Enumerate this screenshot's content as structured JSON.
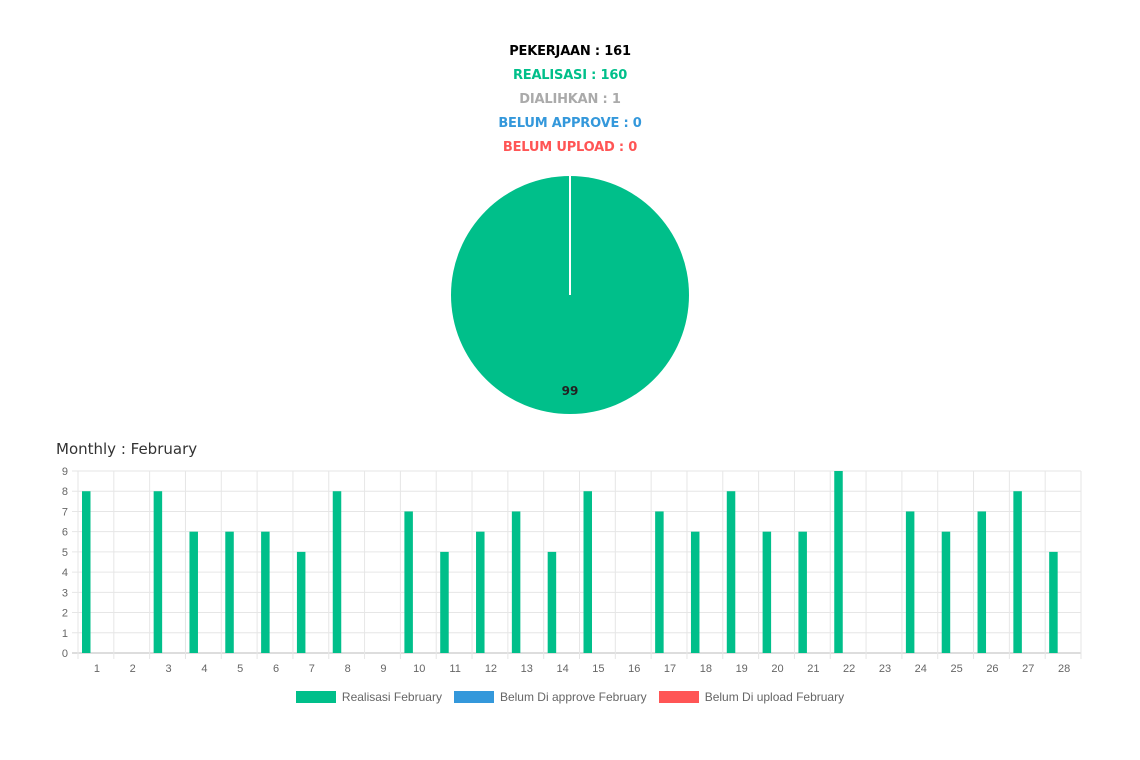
{
  "summary": {
    "pekerjaan": "PEKERJAAN : 161",
    "realisasi": "REALISASI : 160",
    "dialihkan": "DIALIHKAN : 1",
    "belum_approve": "BELUM APPROVE : 0",
    "belum_upload": "BELUM UPLOAD : 0",
    "colors": {
      "pekerjaan": "#000000",
      "realisasi": "#00bf8a",
      "dialihkan": "#aaaaaa",
      "belum_approve": "#3498db",
      "belum_upload": "#ff5555"
    }
  },
  "chart_data": [
    {
      "type": "pie",
      "slices": [
        {
          "value": 99,
          "color": "#00bf8a",
          "label": "99"
        }
      ],
      "note_label": "99"
    },
    {
      "type": "bar",
      "title": "Monthly : February",
      "categories": [
        "1",
        "2",
        "3",
        "4",
        "5",
        "6",
        "7",
        "8",
        "9",
        "10",
        "11",
        "12",
        "13",
        "14",
        "15",
        "16",
        "17",
        "18",
        "19",
        "20",
        "21",
        "22",
        "23",
        "24",
        "25",
        "26",
        "27",
        "28"
      ],
      "series": [
        {
          "name": "Realisasi February",
          "color": "#00bf8a",
          "values": [
            8,
            0,
            8,
            6,
            6,
            6,
            5,
            8,
            0,
            7,
            5,
            6,
            7,
            5,
            8,
            0,
            7,
            6,
            8,
            6,
            6,
            9,
            0,
            7,
            6,
            7,
            8,
            5
          ]
        },
        {
          "name": "Belum Di approve February",
          "color": "#3498db",
          "values": [
            0,
            0,
            0,
            0,
            0,
            0,
            0,
            0,
            0,
            0,
            0,
            0,
            0,
            0,
            0,
            0,
            0,
            0,
            0,
            0,
            0,
            0,
            0,
            0,
            0,
            0,
            0,
            0
          ]
        },
        {
          "name": "Belum Di upload February",
          "color": "#ff5555",
          "values": [
            0,
            0,
            0,
            0,
            0,
            0,
            0,
            0,
            0,
            0,
            0,
            0,
            0,
            0,
            0,
            0,
            0,
            0,
            0,
            0,
            0,
            0,
            0,
            0,
            0,
            0,
            0,
            0
          ]
        }
      ],
      "ylim": [
        0,
        9
      ],
      "yticks": [
        "0",
        "1",
        "2",
        "3",
        "4",
        "5",
        "6",
        "7",
        "8",
        "9"
      ],
      "grid": true,
      "legend": "bottom"
    }
  ]
}
